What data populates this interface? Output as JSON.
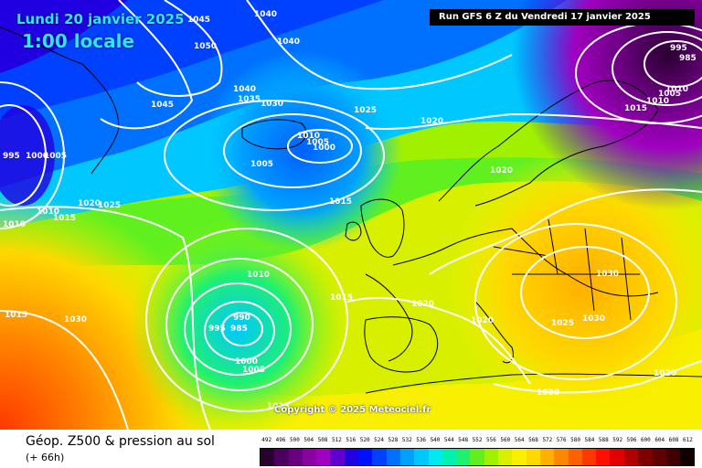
{
  "header": {
    "date": "Lundi 20 janvier 2025",
    "time": "1:00 locale",
    "run": "Run GFS 6 Z du Vendredi 17 janvier 2025"
  },
  "footer": {
    "title": "Géop. Z500 & pression au sol",
    "subtitle": "(+ 66h)",
    "copyright": "Copyright © 2025 Meteociel.fr"
  },
  "legend": {
    "values": [
      "492",
      "496",
      "500",
      "504",
      "508",
      "512",
      "516",
      "520",
      "524",
      "528",
      "532",
      "536",
      "540",
      "544",
      "548",
      "552",
      "556",
      "560",
      "564",
      "568",
      "572",
      "576",
      "580",
      "584",
      "588",
      "592",
      "596",
      "600",
      "604",
      "608",
      "612"
    ],
    "colors": [
      "#2a0030",
      "#4b0060",
      "#6a0080",
      "#8a00a0",
      "#a000c0",
      "#6000d0",
      "#2000e0",
      "#0010ff",
      "#0040ff",
      "#0070ff",
      "#00a0ff",
      "#00c8ff",
      "#00e8f0",
      "#00f0b0",
      "#20f070",
      "#60f020",
      "#a0f000",
      "#d8f000",
      "#f8f000",
      "#ffd800",
      "#ffb000",
      "#ff8800",
      "#ff6000",
      "#ff3800",
      "#ff1000",
      "#e00000",
      "#b00000",
      "#800000",
      "#600000",
      "#400000",
      "#100000"
    ]
  },
  "isobar_labels": [
    {
      "text": "1045"
    },
    {
      "text": "1040"
    },
    {
      "text": "1050"
    },
    {
      "text": "1040"
    },
    {
      "text": "1045"
    },
    {
      "text": "1040"
    },
    {
      "text": "1035"
    },
    {
      "text": "1030"
    },
    {
      "text": "1025"
    },
    {
      "text": "1020"
    },
    {
      "text": "1010"
    },
    {
      "text": "1005"
    },
    {
      "text": "1000"
    },
    {
      "text": "1005"
    },
    {
      "text": "995"
    },
    {
      "text": "1000"
    },
    {
      "text": "1005"
    },
    {
      "text": "1010"
    },
    {
      "text": "1015"
    },
    {
      "text": "1020"
    },
    {
      "text": "1025"
    },
    {
      "text": "1015"
    },
    {
      "text": "1010"
    },
    {
      "text": "1010"
    },
    {
      "text": "990"
    },
    {
      "text": "995"
    },
    {
      "text": "985"
    },
    {
      "text": "1000"
    },
    {
      "text": "1005"
    },
    {
      "text": "1015"
    },
    {
      "text": "1030"
    },
    {
      "text": "1015"
    },
    {
      "text": "1020"
    },
    {
      "text": "1020"
    },
    {
      "text": "1020"
    },
    {
      "text": "1030"
    },
    {
      "text": "1025"
    },
    {
      "text": "1030"
    },
    {
      "text": "1020"
    },
    {
      "text": "1020"
    },
    {
      "text": "995"
    },
    {
      "text": "985"
    },
    {
      "text": "1010"
    },
    {
      "text": "1005"
    },
    {
      "text": "1015"
    },
    {
      "text": "1010"
    },
    {
      "text": "1015"
    }
  ]
}
